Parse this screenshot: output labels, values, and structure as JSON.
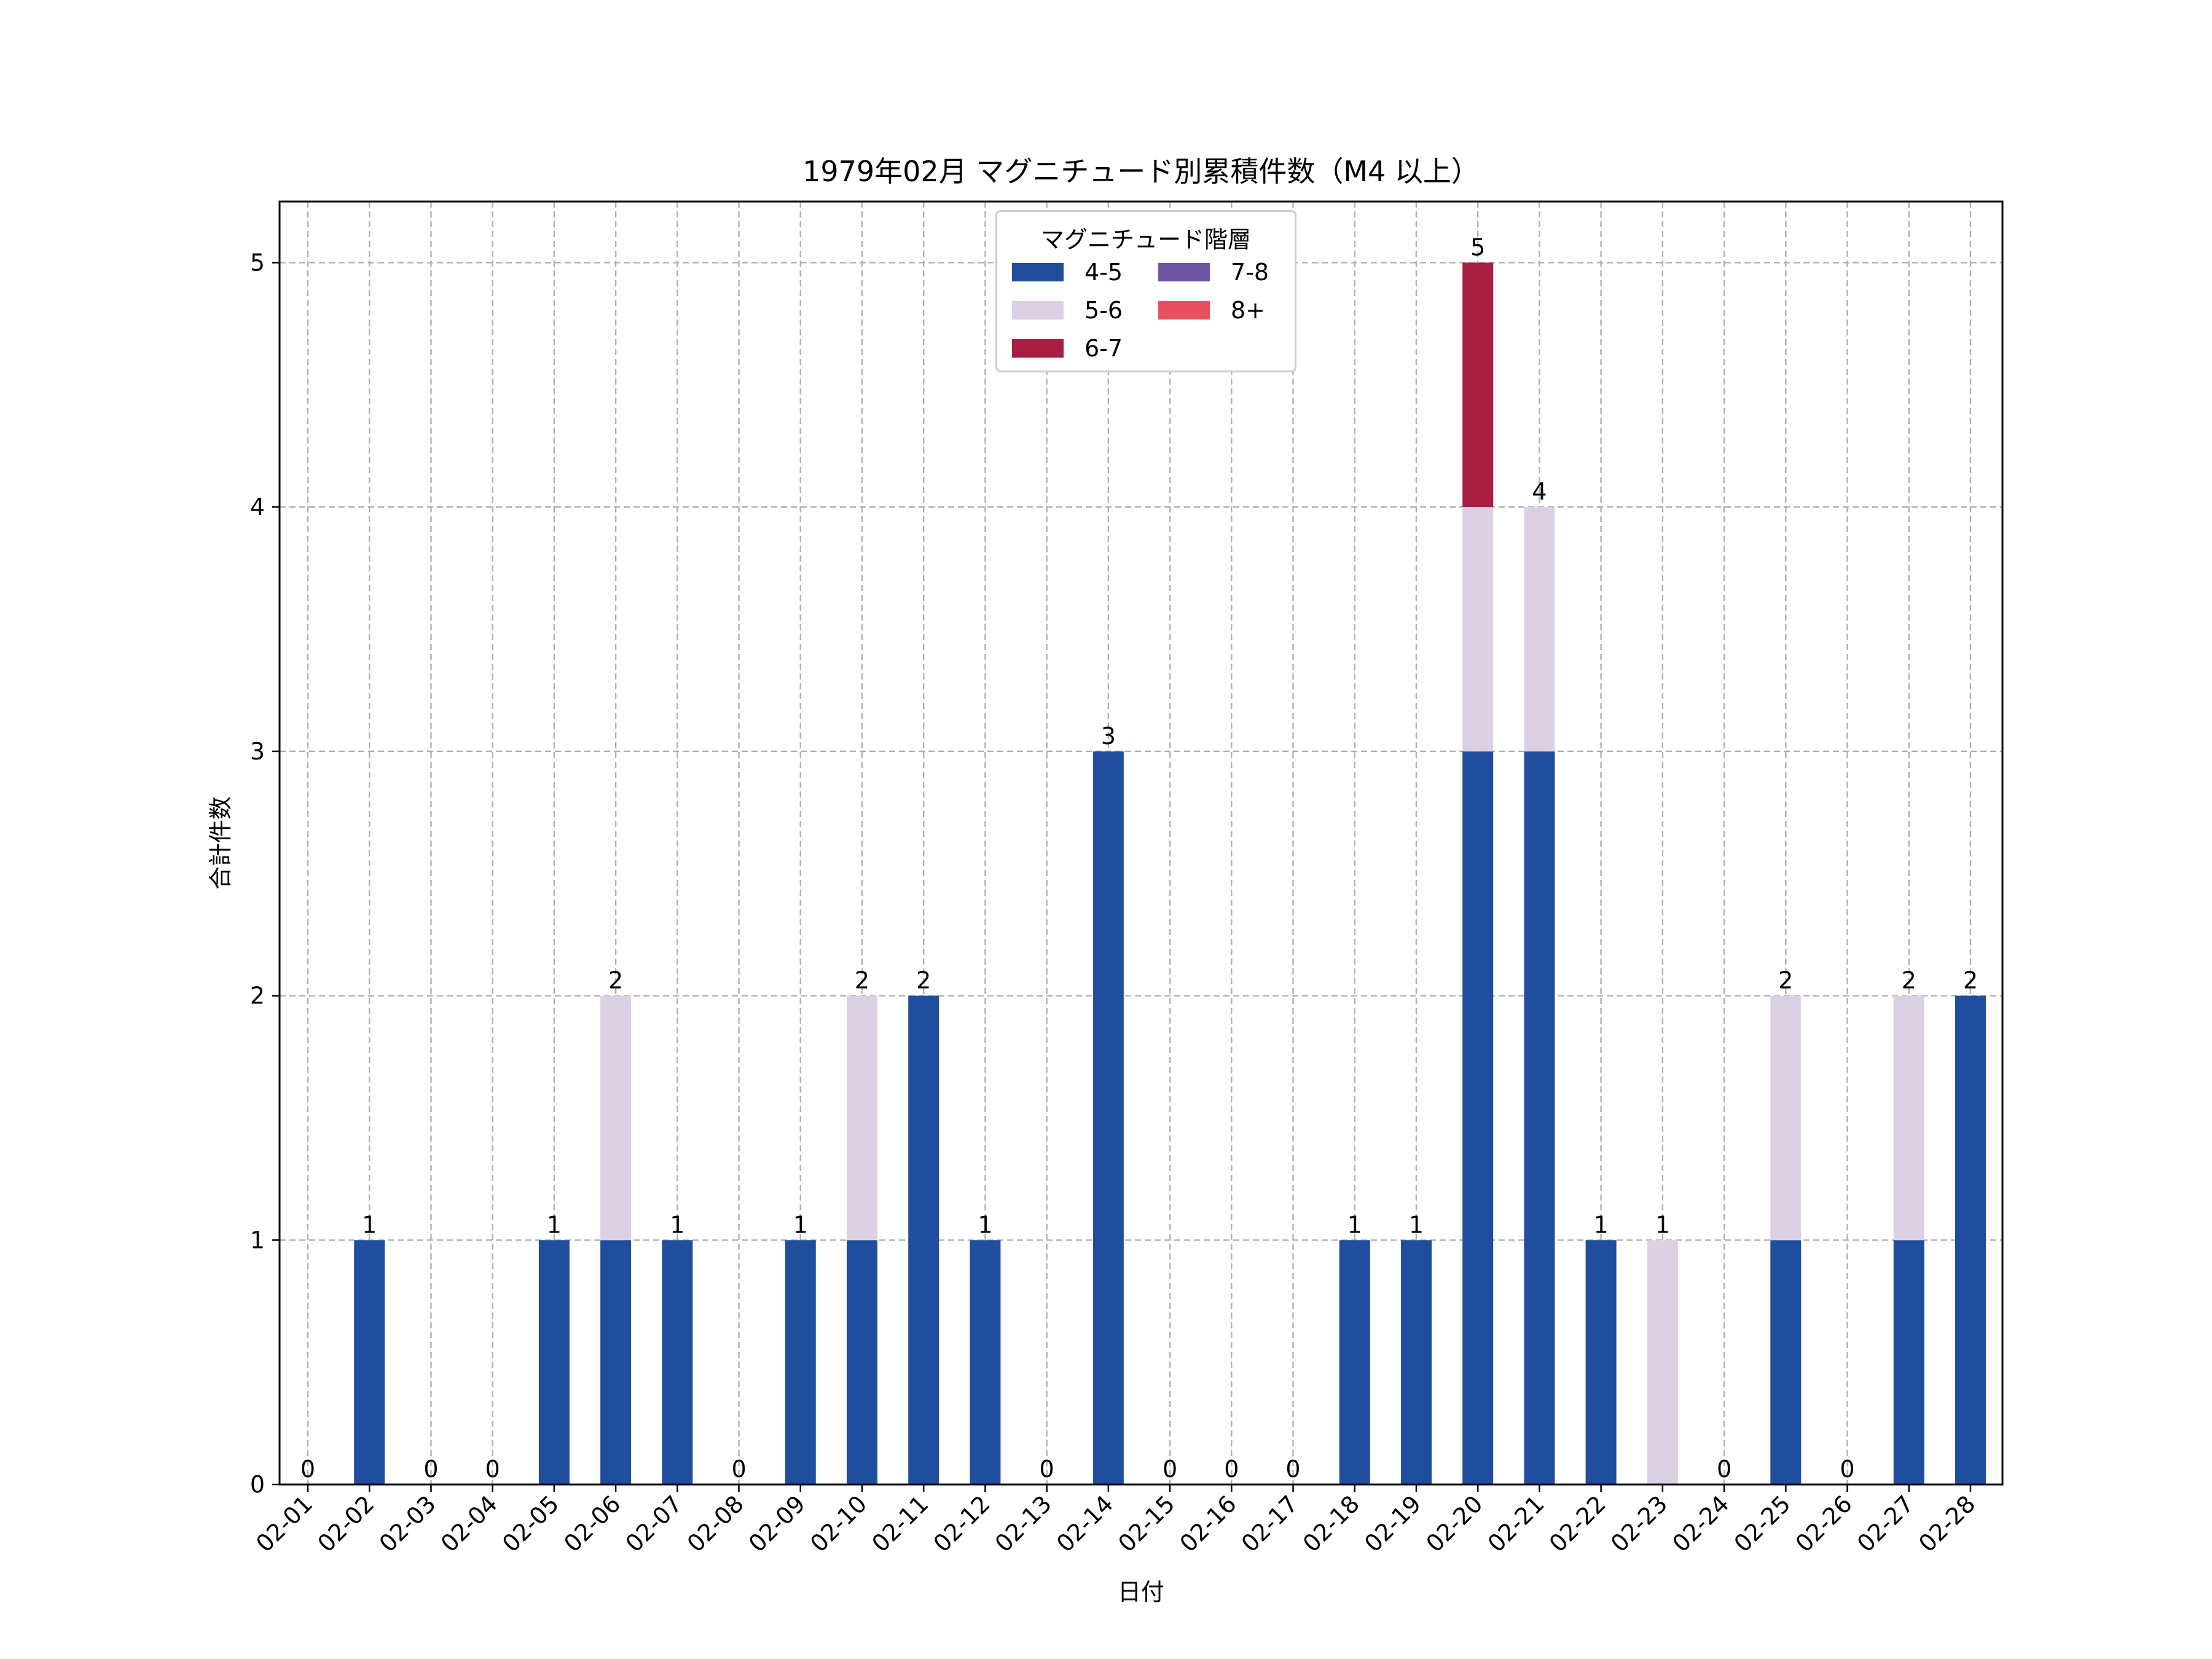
{
  "chart_data": {
    "type": "bar",
    "stacked": true,
    "title": "1979年02月 マグニチュード別累積件数（M4 以上）",
    "xlabel": "日付",
    "ylabel": "合計件数",
    "ylim": [
      0,
      5.25
    ],
    "yticks": [
      0,
      1,
      2,
      3,
      4,
      5
    ],
    "grid": true,
    "legend_title": "マグニチュード階層",
    "legend_position": "upper-center",
    "categories": [
      "02-01",
      "02-02",
      "02-03",
      "02-04",
      "02-05",
      "02-06",
      "02-07",
      "02-08",
      "02-09",
      "02-10",
      "02-11",
      "02-12",
      "02-13",
      "02-14",
      "02-15",
      "02-16",
      "02-17",
      "02-18",
      "02-19",
      "02-20",
      "02-21",
      "02-22",
      "02-23",
      "02-24",
      "02-25",
      "02-26",
      "02-27",
      "02-28"
    ],
    "series": [
      {
        "name": "4-5",
        "color": "#1f4e9e",
        "values": [
          0,
          1,
          0,
          0,
          1,
          1,
          1,
          0,
          1,
          1,
          2,
          1,
          0,
          3,
          0,
          0,
          0,
          1,
          1,
          3,
          3,
          1,
          0,
          0,
          1,
          0,
          1,
          2
        ]
      },
      {
        "name": "5-6",
        "color": "#dcd0e4",
        "values": [
          0,
          0,
          0,
          0,
          0,
          1,
          0,
          0,
          0,
          1,
          0,
          0,
          0,
          0,
          0,
          0,
          0,
          0,
          0,
          1,
          1,
          0,
          1,
          0,
          1,
          0,
          1,
          0
        ]
      },
      {
        "name": "6-7",
        "color": "#a61f43",
        "values": [
          0,
          0,
          0,
          0,
          0,
          0,
          0,
          0,
          0,
          0,
          0,
          0,
          0,
          0,
          0,
          0,
          0,
          0,
          0,
          1,
          0,
          0,
          0,
          0,
          0,
          0,
          0,
          0
        ]
      },
      {
        "name": "7-8",
        "color": "#6d55a3",
        "values": [
          0,
          0,
          0,
          0,
          0,
          0,
          0,
          0,
          0,
          0,
          0,
          0,
          0,
          0,
          0,
          0,
          0,
          0,
          0,
          0,
          0,
          0,
          0,
          0,
          0,
          0,
          0,
          0
        ]
      },
      {
        "name": "8+",
        "color": "#e5515f",
        "values": [
          0,
          0,
          0,
          0,
          0,
          0,
          0,
          0,
          0,
          0,
          0,
          0,
          0,
          0,
          0,
          0,
          0,
          0,
          0,
          0,
          0,
          0,
          0,
          0,
          0,
          0,
          0,
          0
        ]
      }
    ],
    "totals": [
      0,
      1,
      0,
      0,
      1,
      2,
      1,
      0,
      1,
      2,
      2,
      1,
      0,
      3,
      0,
      0,
      0,
      1,
      1,
      5,
      4,
      1,
      1,
      0,
      2,
      0,
      2,
      2
    ]
  }
}
